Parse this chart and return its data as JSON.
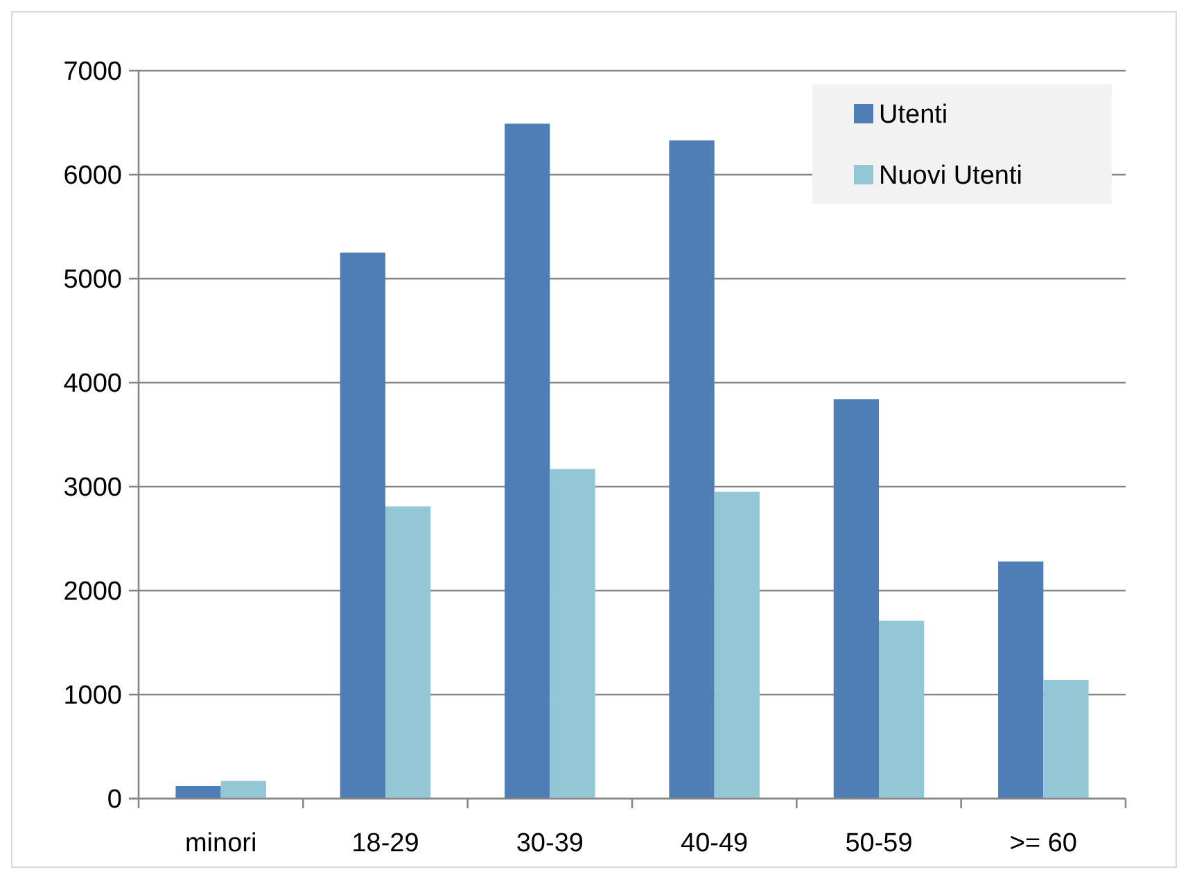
{
  "chart_data": {
    "type": "bar",
    "categories": [
      "minori",
      "18-29",
      "30-39",
      "40-49",
      "50-59",
      ">= 60"
    ],
    "series": [
      {
        "name": "Utenti",
        "color": "#4f7db5",
        "values": [
          120,
          5250,
          6490,
          6330,
          3840,
          2280
        ]
      },
      {
        "name": "Nuovi Utenti",
        "color": "#94c7d6",
        "values": [
          170,
          2810,
          3170,
          2950,
          1710,
          1140
        ]
      }
    ],
    "ylim": [
      0,
      7000
    ],
    "yticks": [
      0,
      1000,
      2000,
      3000,
      4000,
      5000,
      6000,
      7000
    ],
    "grid": "y",
    "legend": "top right"
  }
}
